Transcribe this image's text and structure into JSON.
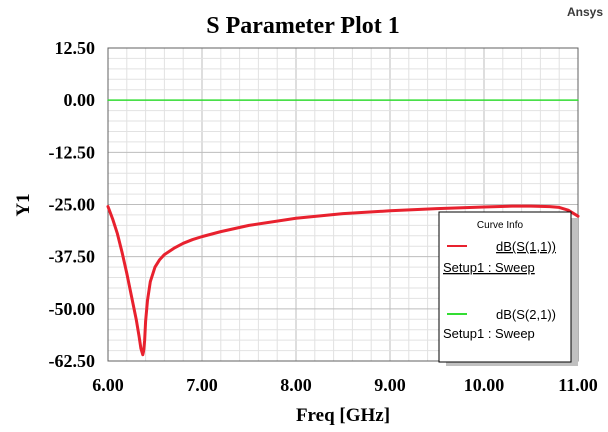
{
  "brand": "Ansys",
  "chart_data": {
    "type": "line",
    "title": "S Parameter Plot 1",
    "xlabel": "Freq [GHz]",
    "ylabel": "Y1",
    "xlim": [
      6.0,
      11.0
    ],
    "ylim": [
      -62.5,
      12.5
    ],
    "x_ticks": [
      6,
      7,
      8,
      9,
      10,
      11
    ],
    "x_tick_labels": [
      "6.00",
      "7.00",
      "8.00",
      "9.00",
      "10.00",
      "11.00"
    ],
    "y_ticks": [
      12.5,
      0,
      -12.5,
      -25,
      -37.5,
      -50,
      -62.5
    ],
    "y_tick_labels": [
      "12.50",
      "0.00",
      "-12.50",
      "-25.00",
      "-37.50",
      "-50.00",
      "-62.50"
    ],
    "grid": true,
    "legend": {
      "title": "Curve Info",
      "placement": "bottom-right",
      "entries": [
        {
          "label": "dB(S(1,1))",
          "sublabel": "Setup1 : Sweep",
          "color": "#e8212e"
        },
        {
          "label": "dB(S(2,1))",
          "sublabel": "Setup1 : Sweep",
          "color": "#33dd33"
        }
      ]
    },
    "series": [
      {
        "name": "dB(S(1,1))",
        "color": "#e8212e",
        "x": [
          6.0,
          6.05,
          6.1,
          6.15,
          6.2,
          6.25,
          6.3,
          6.33,
          6.35,
          6.37,
          6.38,
          6.39,
          6.4,
          6.42,
          6.45,
          6.5,
          6.55,
          6.6,
          6.7,
          6.8,
          6.9,
          7.0,
          7.2,
          7.5,
          8.0,
          8.5,
          9.0,
          9.5,
          10.0,
          10.3,
          10.5,
          10.7,
          10.8,
          10.9,
          11.0
        ],
        "y": [
          -25.5,
          -28.5,
          -32.0,
          -36.5,
          -41.5,
          -47.0,
          -52.5,
          -56.5,
          -59.5,
          -61.0,
          -60.0,
          -57.5,
          -53.0,
          -48.0,
          -43.5,
          -40.0,
          -38.2,
          -37.0,
          -35.5,
          -34.3,
          -33.4,
          -32.7,
          -31.5,
          -30.0,
          -28.3,
          -27.2,
          -26.5,
          -26.0,
          -25.6,
          -25.4,
          -25.4,
          -25.5,
          -25.7,
          -26.4,
          -27.8
        ]
      },
      {
        "name": "dB(S(2,1))",
        "color": "#33dd33",
        "x": [
          6.0,
          11.0
        ],
        "y": [
          0.0,
          0.0
        ]
      }
    ]
  }
}
